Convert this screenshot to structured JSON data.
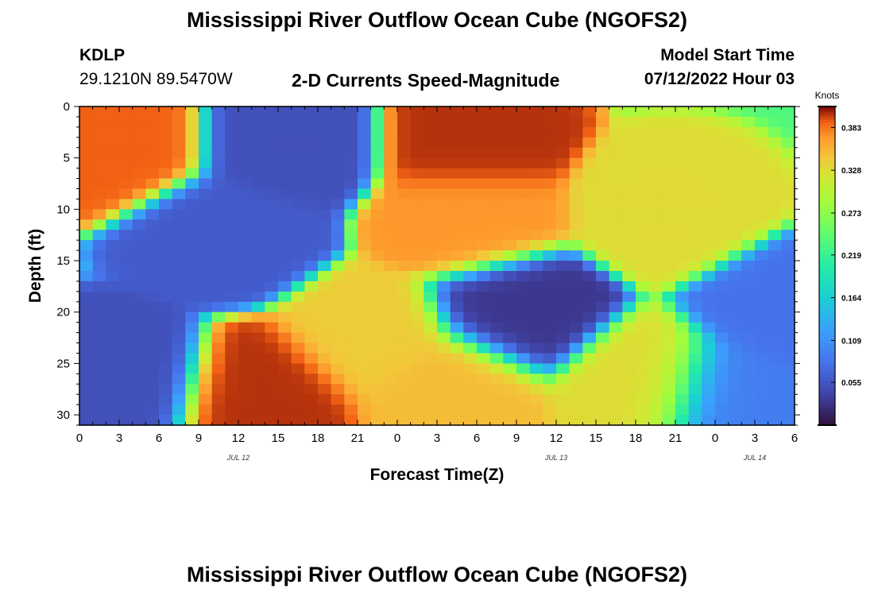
{
  "title": "Mississippi River Outflow Ocean Cube (NGOFS2)",
  "station": {
    "id": "KDLP",
    "coords": "29.1210N  89.5470W"
  },
  "subtitle": "2-D Currents Speed-Magnitude",
  "model": {
    "label": "Model Start Time",
    "value": "07/12/2022 Hour 03"
  },
  "footer_title": "Mississippi River Outflow Ocean Cube (NGOFS2)",
  "chart_data": {
    "type": "heatmap",
    "xlabel": "Forecast Time(Z)",
    "ylabel": "Depth (ft)",
    "xlim": [
      0,
      54
    ],
    "ylim": [
      31,
      0
    ],
    "x_tick_labels": [
      "0",
      "3",
      "6",
      "9",
      "12",
      "15",
      "18",
      "21",
      "0",
      "3",
      "6",
      "9",
      "12",
      "15",
      "18",
      "21",
      "0",
      "3",
      "6"
    ],
    "date_labels": [
      {
        "text": "JUL 12",
        "x": 12
      },
      {
        "text": "JUL 13",
        "x": 36
      },
      {
        "text": "JUL 14",
        "x": 51
      }
    ],
    "y_ticks": [
      0,
      5,
      10,
      15,
      20,
      25,
      30
    ],
    "colorbar": {
      "title": "Knots",
      "range": [
        0.0,
        0.41
      ],
      "ticks": [
        "0.383",
        "0.328",
        "0.273",
        "0.219",
        "0.164",
        "0.109",
        "0.055"
      ],
      "tick_values": [
        0.383,
        0.328,
        0.273,
        0.219,
        0.164,
        0.109,
        0.055
      ]
    },
    "features": [
      {
        "t": 3,
        "d": 3.5,
        "v": 0.39
      },
      {
        "t": 15.5,
        "d": 3.5,
        "v": 0.05
      },
      {
        "t": 29.5,
        "d": 3.5,
        "v": 0.4
      },
      {
        "t": 29.5,
        "d": 11,
        "v": 0.37
      },
      {
        "t": 11,
        "d": 12.5,
        "v": 0.06
      },
      {
        "t": 3,
        "d": 26,
        "v": 0.05
      },
      {
        "t": 14,
        "d": 27.5,
        "v": 0.4
      },
      {
        "t": 22,
        "d": 22.5,
        "v": 0.34
      },
      {
        "t": 28,
        "d": 27,
        "v": 0.35
      },
      {
        "t": 33,
        "d": 20,
        "v": 0.03
      },
      {
        "t": 44.5,
        "d": 10,
        "v": 0.33
      },
      {
        "t": 43,
        "d": 27,
        "v": 0.33
      },
      {
        "t": 49,
        "d": 28,
        "v": 0.09
      },
      {
        "t": 53.5,
        "d": 20,
        "v": 0.08
      }
    ]
  }
}
